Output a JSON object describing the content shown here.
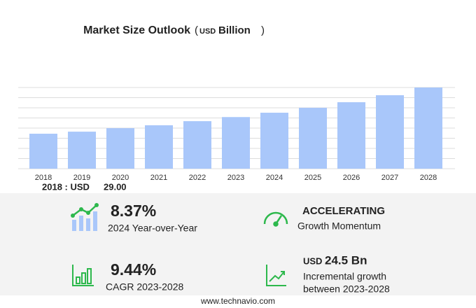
{
  "chart_data": {
    "type": "bar",
    "title": "Market Size Outlook",
    "unit_prefix": "USD",
    "unit": "Billion",
    "categories": [
      "2018",
      "2019",
      "2020",
      "2021",
      "2022",
      "2023",
      "2024",
      "2025",
      "2026",
      "2027",
      "2028"
    ],
    "values": [
      29.0,
      30.7,
      33.6,
      36.0,
      39.4,
      42.8,
      46.4,
      50.5,
      55.1,
      60.9,
      67.3
    ],
    "value_labels": [
      "29.00",
      null,
      null,
      null,
      null,
      null,
      null,
      null,
      null,
      null,
      null
    ],
    "annotation": "2018 : USD",
    "color": "#a9c7fa",
    "ylim": [
      0,
      67.3
    ]
  },
  "stats": [
    {
      "value": "8.37%",
      "label": "2024 Year-over-Year"
    },
    {
      "value": "ACCELERATING",
      "label": "Growth Momentum"
    },
    {
      "value": "9.44%",
      "label": "CAGR 2023-2028"
    },
    {
      "prefix": "USD",
      "value": "24.5 Bn",
      "label": "Incremental growth",
      "label2": "between 2023-2028"
    }
  ],
  "footer": "www.technavio.com"
}
